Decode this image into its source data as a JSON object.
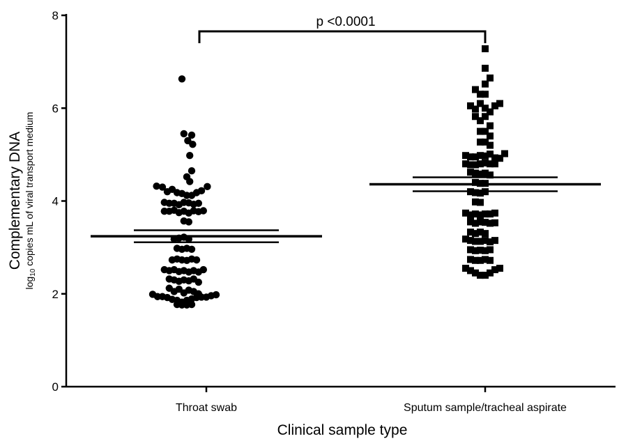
{
  "chart_data": {
    "type": "scatter",
    "subtype": "dot-plot-with-mean-and-sem",
    "xlabel": "Clinical sample type",
    "ylabel": "Complementary DNA",
    "ylabel_sub_prefix": "log",
    "ylabel_sub_base": "10",
    "ylabel_sub_rest": " copies mL of viral transport medium",
    "ylim": [
      0,
      8
    ],
    "yticks": [
      "0",
      "2",
      "4",
      "6",
      "8"
    ],
    "grid": false,
    "legend": "none",
    "categories": [
      "Throat swab",
      "Sputum sample/tracheal aspirate"
    ],
    "annotation": "p <0.0001",
    "series": [
      {
        "marker": "circle",
        "mean": 3.24,
        "sem_upper": 3.37,
        "sem_lower": 3.11,
        "points": [
          {
            "x": -0.25,
            "y": 6.63
          },
          {
            "x": -0.23,
            "y": 5.45
          },
          {
            "x": -0.19,
            "y": 5.3
          },
          {
            "x": -0.15,
            "y": 5.42
          },
          {
            "x": -0.14,
            "y": 5.22
          },
          {
            "x": -0.17,
            "y": 4.98
          },
          {
            "x": -0.2,
            "y": 4.52
          },
          {
            "x": -0.15,
            "y": 4.65
          },
          {
            "x": -0.17,
            "y": 4.42
          },
          {
            "x": -0.51,
            "y": 4.32
          },
          {
            "x": -0.45,
            "y": 4.3
          },
          {
            "x": -0.4,
            "y": 4.2
          },
          {
            "x": -0.35,
            "y": 4.25
          },
          {
            "x": -0.3,
            "y": 4.18
          },
          {
            "x": -0.25,
            "y": 4.16
          },
          {
            "x": -0.2,
            "y": 4.12
          },
          {
            "x": -0.15,
            "y": 4.12
          },
          {
            "x": -0.1,
            "y": 4.18
          },
          {
            "x": -0.05,
            "y": 4.22
          },
          {
            "x": 0.01,
            "y": 4.31
          },
          {
            "x": -0.43,
            "y": 3.97
          },
          {
            "x": -0.38,
            "y": 3.95
          },
          {
            "x": -0.33,
            "y": 3.95
          },
          {
            "x": -0.28,
            "y": 3.92
          },
          {
            "x": -0.23,
            "y": 3.97
          },
          {
            "x": -0.18,
            "y": 3.96
          },
          {
            "x": -0.13,
            "y": 3.93
          },
          {
            "x": -0.08,
            "y": 3.95
          },
          {
            "x": -0.43,
            "y": 3.78
          },
          {
            "x": -0.38,
            "y": 3.78
          },
          {
            "x": -0.33,
            "y": 3.8
          },
          {
            "x": -0.28,
            "y": 3.75
          },
          {
            "x": -0.23,
            "y": 3.78
          },
          {
            "x": -0.18,
            "y": 3.74
          },
          {
            "x": -0.13,
            "y": 3.79
          },
          {
            "x": -0.08,
            "y": 3.77
          },
          {
            "x": -0.03,
            "y": 3.79
          },
          {
            "x": -0.23,
            "y": 3.57
          },
          {
            "x": -0.18,
            "y": 3.55
          },
          {
            "x": -0.33,
            "y": 3.18
          },
          {
            "x": -0.28,
            "y": 3.2
          },
          {
            "x": -0.23,
            "y": 3.22
          },
          {
            "x": -0.18,
            "y": 3.18
          },
          {
            "x": -0.3,
            "y": 2.98
          },
          {
            "x": -0.25,
            "y": 2.96
          },
          {
            "x": -0.2,
            "y": 2.98
          },
          {
            "x": -0.15,
            "y": 2.96
          },
          {
            "x": -0.35,
            "y": 2.73
          },
          {
            "x": -0.3,
            "y": 2.75
          },
          {
            "x": -0.25,
            "y": 2.73
          },
          {
            "x": -0.2,
            "y": 2.72
          },
          {
            "x": -0.15,
            "y": 2.75
          },
          {
            "x": -0.1,
            "y": 2.73
          },
          {
            "x": -0.43,
            "y": 2.52
          },
          {
            "x": -0.38,
            "y": 2.5
          },
          {
            "x": -0.33,
            "y": 2.52
          },
          {
            "x": -0.28,
            "y": 2.48
          },
          {
            "x": -0.23,
            "y": 2.5
          },
          {
            "x": -0.18,
            "y": 2.47
          },
          {
            "x": -0.13,
            "y": 2.5
          },
          {
            "x": -0.08,
            "y": 2.47
          },
          {
            "x": -0.03,
            "y": 2.52
          },
          {
            "x": -0.38,
            "y": 2.32
          },
          {
            "x": -0.33,
            "y": 2.3
          },
          {
            "x": -0.28,
            "y": 2.27
          },
          {
            "x": -0.23,
            "y": 2.3
          },
          {
            "x": -0.18,
            "y": 2.28
          },
          {
            "x": -0.13,
            "y": 2.32
          },
          {
            "x": -0.08,
            "y": 2.25
          },
          {
            "x": -0.38,
            "y": 2.12
          },
          {
            "x": -0.33,
            "y": 2.05
          },
          {
            "x": -0.28,
            "y": 2.1
          },
          {
            "x": -0.23,
            "y": 2.02
          },
          {
            "x": -0.18,
            "y": 2.08
          },
          {
            "x": -0.13,
            "y": 2.05
          },
          {
            "x": -0.08,
            "y": 2.0
          },
          {
            "x": -0.55,
            "y": 1.99
          },
          {
            "x": -0.5,
            "y": 1.94
          },
          {
            "x": -0.45,
            "y": 1.94
          },
          {
            "x": -0.4,
            "y": 1.92
          },
          {
            "x": -0.35,
            "y": 1.88
          },
          {
            "x": -0.3,
            "y": 1.86
          },
          {
            "x": -0.25,
            "y": 1.82
          },
          {
            "x": -0.2,
            "y": 1.86
          },
          {
            "x": -0.15,
            "y": 1.89
          },
          {
            "x": -0.1,
            "y": 1.92
          },
          {
            "x": -0.05,
            "y": 1.93
          },
          {
            "x": 0.0,
            "y": 1.93
          },
          {
            "x": 0.05,
            "y": 1.96
          },
          {
            "x": 0.1,
            "y": 1.98
          },
          {
            "x": -0.3,
            "y": 1.77
          },
          {
            "x": -0.25,
            "y": 1.76
          },
          {
            "x": -0.2,
            "y": 1.76
          },
          {
            "x": -0.15,
            "y": 1.77
          }
        ]
      },
      {
        "marker": "square",
        "mean": 4.36,
        "sem_upper": 4.51,
        "sem_lower": 4.21,
        "points": [
          {
            "x": 0.0,
            "y": 7.28
          },
          {
            "x": 0.0,
            "y": 6.86
          },
          {
            "x": 0.05,
            "y": 6.65
          },
          {
            "x": 0.0,
            "y": 6.52
          },
          {
            "x": -0.1,
            "y": 6.4
          },
          {
            "x": -0.05,
            "y": 6.3
          },
          {
            "x": 0.0,
            "y": 6.3
          },
          {
            "x": -0.15,
            "y": 6.05
          },
          {
            "x": -0.1,
            "y": 5.98
          },
          {
            "x": -0.05,
            "y": 6.1
          },
          {
            "x": 0.0,
            "y": 6.0
          },
          {
            "x": 0.05,
            "y": 5.92
          },
          {
            "x": 0.1,
            "y": 6.05
          },
          {
            "x": 0.15,
            "y": 6.1
          },
          {
            "x": -0.1,
            "y": 5.82
          },
          {
            "x": -0.05,
            "y": 5.73
          },
          {
            "x": 0.0,
            "y": 5.82
          },
          {
            "x": 0.05,
            "y": 5.62
          },
          {
            "x": -0.05,
            "y": 5.5
          },
          {
            "x": 0.0,
            "y": 5.5
          },
          {
            "x": 0.05,
            "y": 5.4
          },
          {
            "x": -0.05,
            "y": 5.27
          },
          {
            "x": 0.0,
            "y": 5.27
          },
          {
            "x": 0.05,
            "y": 5.2
          },
          {
            "x": -0.2,
            "y": 4.98
          },
          {
            "x": -0.15,
            "y": 4.95
          },
          {
            "x": -0.1,
            "y": 4.95
          },
          {
            "x": -0.05,
            "y": 4.98
          },
          {
            "x": 0.0,
            "y": 4.97
          },
          {
            "x": 0.05,
            "y": 5.01
          },
          {
            "x": 0.1,
            "y": 4.93
          },
          {
            "x": 0.15,
            "y": 4.92
          },
          {
            "x": 0.2,
            "y": 5.02
          },
          {
            "x": -0.2,
            "y": 4.8
          },
          {
            "x": -0.15,
            "y": 4.78
          },
          {
            "x": -0.1,
            "y": 4.78
          },
          {
            "x": -0.05,
            "y": 4.8
          },
          {
            "x": 0.0,
            "y": 4.82
          },
          {
            "x": 0.05,
            "y": 4.8
          },
          {
            "x": 0.1,
            "y": 4.8
          },
          {
            "x": -0.15,
            "y": 4.62
          },
          {
            "x": -0.1,
            "y": 4.6
          },
          {
            "x": -0.05,
            "y": 4.58
          },
          {
            "x": 0.0,
            "y": 4.6
          },
          {
            "x": 0.05,
            "y": 4.56
          },
          {
            "x": -0.1,
            "y": 4.4
          },
          {
            "x": -0.05,
            "y": 4.38
          },
          {
            "x": 0.0,
            "y": 4.38
          },
          {
            "x": -0.15,
            "y": 4.2
          },
          {
            "x": -0.1,
            "y": 4.18
          },
          {
            "x": -0.05,
            "y": 4.17
          },
          {
            "x": 0.0,
            "y": 4.2
          },
          {
            "x": -0.1,
            "y": 3.98
          },
          {
            "x": -0.05,
            "y": 3.97
          },
          {
            "x": -0.2,
            "y": 3.74
          },
          {
            "x": -0.15,
            "y": 3.7
          },
          {
            "x": -0.1,
            "y": 3.72
          },
          {
            "x": -0.05,
            "y": 3.7
          },
          {
            "x": 0.0,
            "y": 3.72
          },
          {
            "x": 0.05,
            "y": 3.72
          },
          {
            "x": 0.1,
            "y": 3.74
          },
          {
            "x": -0.15,
            "y": 3.55
          },
          {
            "x": -0.1,
            "y": 3.52
          },
          {
            "x": -0.05,
            "y": 3.55
          },
          {
            "x": 0.0,
            "y": 3.54
          },
          {
            "x": 0.05,
            "y": 3.52
          },
          {
            "x": 0.1,
            "y": 3.53
          },
          {
            "x": -0.15,
            "y": 3.33
          },
          {
            "x": -0.1,
            "y": 3.3
          },
          {
            "x": -0.05,
            "y": 3.33
          },
          {
            "x": 0.0,
            "y": 3.3
          },
          {
            "x": -0.2,
            "y": 3.18
          },
          {
            "x": -0.15,
            "y": 3.15
          },
          {
            "x": -0.1,
            "y": 3.13
          },
          {
            "x": -0.05,
            "y": 3.13
          },
          {
            "x": 0.0,
            "y": 3.15
          },
          {
            "x": 0.05,
            "y": 3.12
          },
          {
            "x": 0.1,
            "y": 3.15
          },
          {
            "x": -0.15,
            "y": 2.95
          },
          {
            "x": -0.1,
            "y": 2.93
          },
          {
            "x": -0.05,
            "y": 2.94
          },
          {
            "x": 0.0,
            "y": 2.93
          },
          {
            "x": 0.05,
            "y": 2.95
          },
          {
            "x": -0.15,
            "y": 2.74
          },
          {
            "x": -0.1,
            "y": 2.72
          },
          {
            "x": -0.05,
            "y": 2.72
          },
          {
            "x": 0.0,
            "y": 2.74
          },
          {
            "x": 0.05,
            "y": 2.72
          },
          {
            "x": -0.2,
            "y": 2.55
          },
          {
            "x": -0.15,
            "y": 2.5
          },
          {
            "x": -0.1,
            "y": 2.45
          },
          {
            "x": -0.05,
            "y": 2.4
          },
          {
            "x": 0.0,
            "y": 2.4
          },
          {
            "x": 0.05,
            "y": 2.45
          },
          {
            "x": 0.1,
            "y": 2.52
          },
          {
            "x": 0.15,
            "y": 2.55
          }
        ]
      }
    ]
  }
}
